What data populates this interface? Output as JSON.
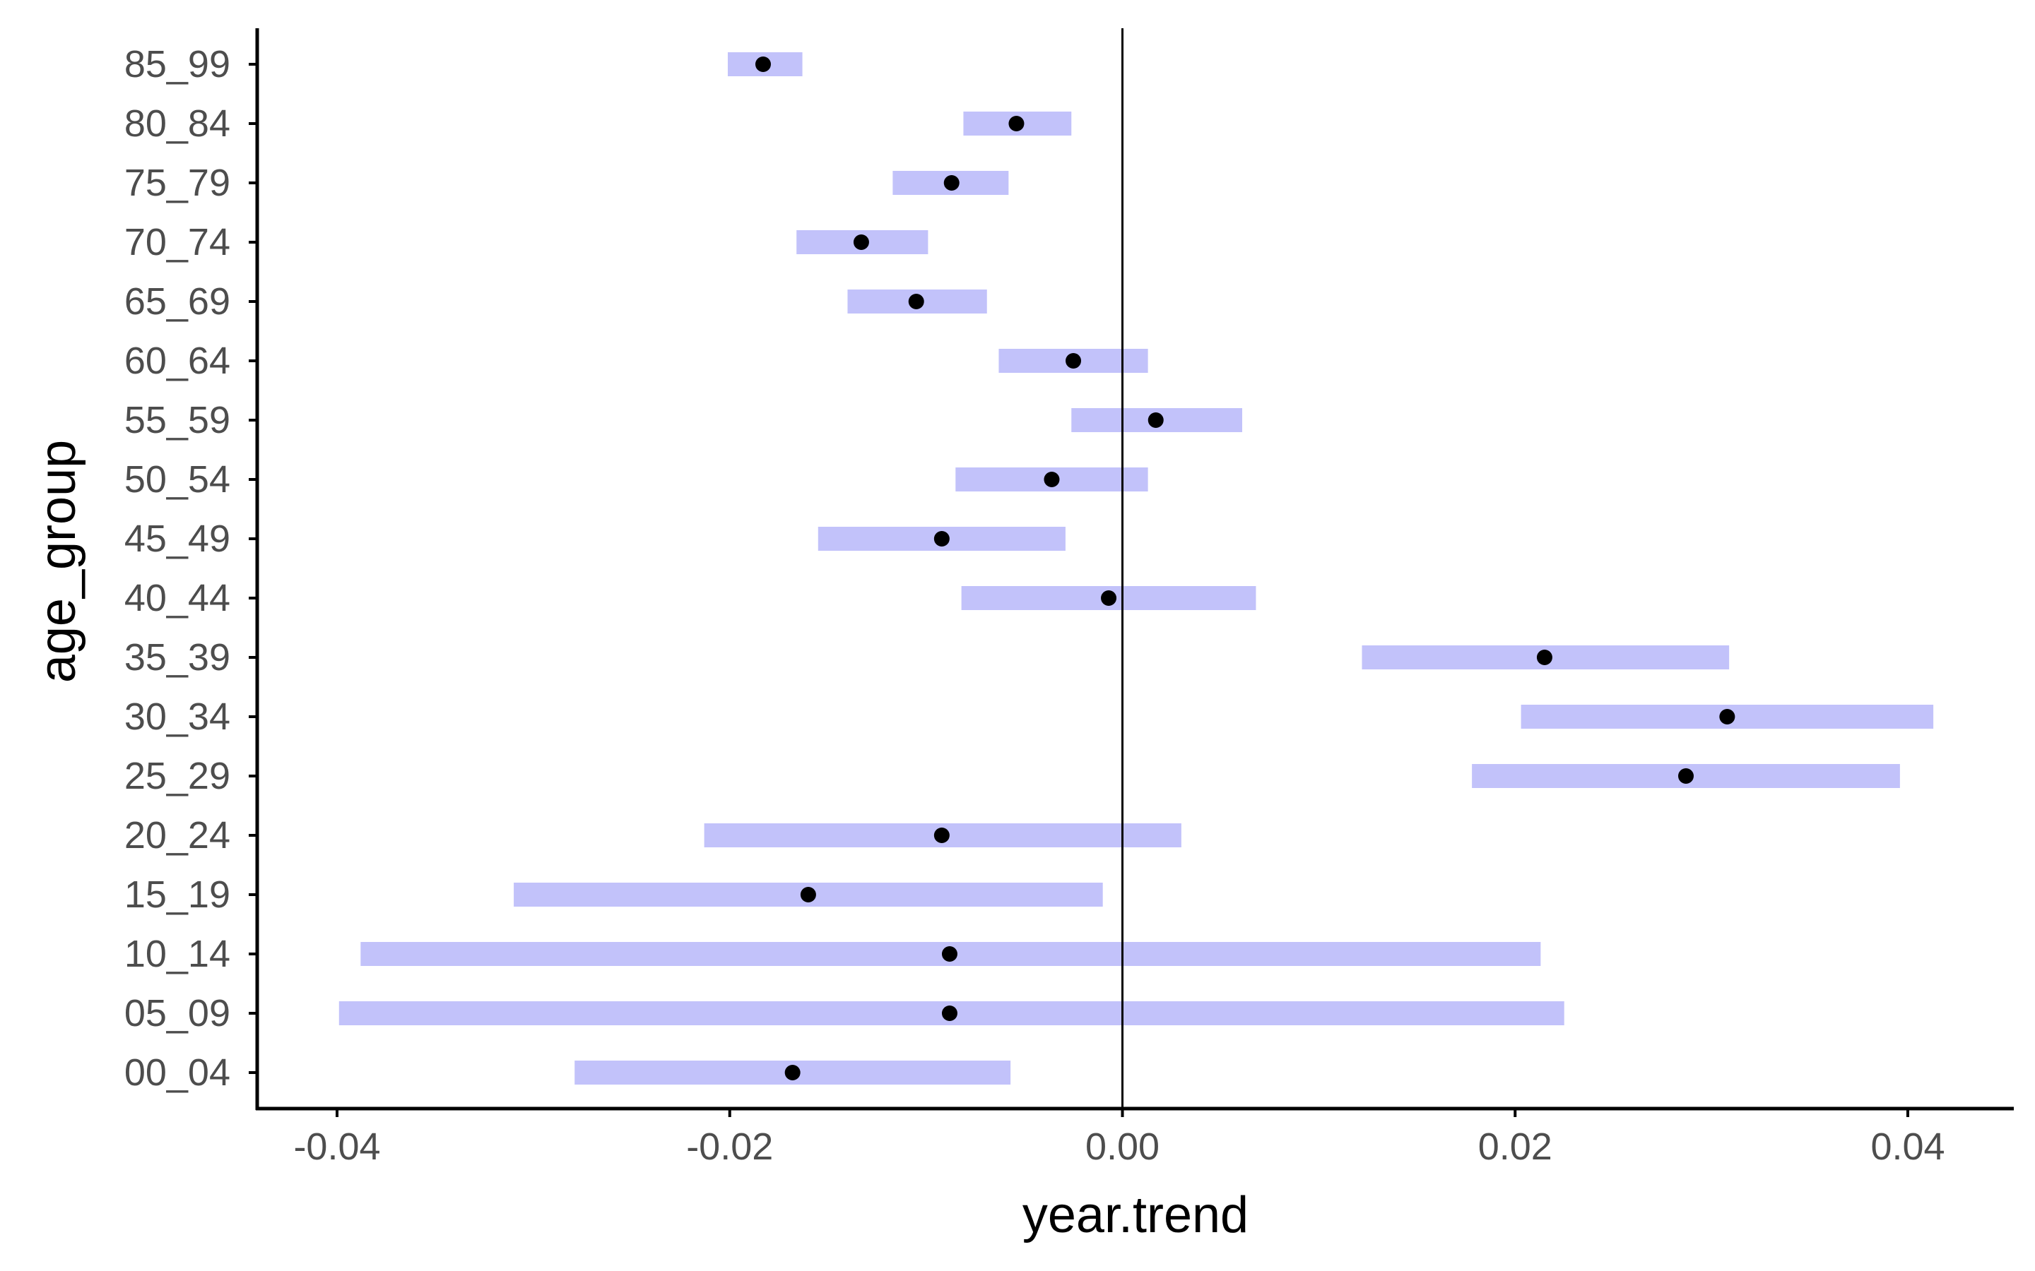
{
  "chart_data": {
    "type": "interval-dot",
    "xlabel": "year.trend",
    "ylabel": "age_group",
    "xlim": [
      -0.0435,
      0.0455
    ],
    "x_ticks": [
      "-0.04",
      "-0.02",
      "0.00",
      "0.02",
      "0.04"
    ],
    "x_tick_values": [
      -0.04,
      -0.02,
      0.0,
      0.02,
      0.04
    ],
    "reference_line_x": 0.0,
    "grid": false,
    "interval_color": "#c2c2fa",
    "point_color": "#000000",
    "rows": [
      {
        "group": "85_99",
        "estimate": -0.0183,
        "lower": -0.0201,
        "upper": -0.0163
      },
      {
        "group": "80_84",
        "estimate": -0.0054,
        "lower": -0.0081,
        "upper": -0.0026
      },
      {
        "group": "75_79",
        "estimate": -0.0087,
        "lower": -0.0117,
        "upper": -0.0058
      },
      {
        "group": "70_74",
        "estimate": -0.0133,
        "lower": -0.0166,
        "upper": -0.0099
      },
      {
        "group": "65_69",
        "estimate": -0.0105,
        "lower": -0.014,
        "upper": -0.0069
      },
      {
        "group": "60_64",
        "estimate": -0.0025,
        "lower": -0.0063,
        "upper": 0.0013
      },
      {
        "group": "55_59",
        "estimate": 0.0017,
        "lower": -0.0026,
        "upper": 0.0061
      },
      {
        "group": "50_54",
        "estimate": -0.0036,
        "lower": -0.0085,
        "upper": 0.0013
      },
      {
        "group": "45_49",
        "estimate": -0.0092,
        "lower": -0.0155,
        "upper": -0.0029
      },
      {
        "group": "40_44",
        "estimate": -0.0007,
        "lower": -0.0082,
        "upper": 0.0068
      },
      {
        "group": "35_39",
        "estimate": 0.0215,
        "lower": 0.0122,
        "upper": 0.0309
      },
      {
        "group": "30_34",
        "estimate": 0.0308,
        "lower": 0.0203,
        "upper": 0.0413
      },
      {
        "group": "25_29",
        "estimate": 0.0287,
        "lower": 0.0178,
        "upper": 0.0396
      },
      {
        "group": "20_24",
        "estimate": -0.0092,
        "lower": -0.0213,
        "upper": 0.003
      },
      {
        "group": "15_19",
        "estimate": -0.016,
        "lower": -0.031,
        "upper": -0.001
      },
      {
        "group": "10_14",
        "estimate": -0.0088,
        "lower": -0.0388,
        "upper": 0.0213
      },
      {
        "group": "05_09",
        "estimate": -0.0088,
        "lower": -0.0399,
        "upper": 0.0225
      },
      {
        "group": "00_04",
        "estimate": -0.0168,
        "lower": -0.0279,
        "upper": -0.0057
      }
    ]
  }
}
